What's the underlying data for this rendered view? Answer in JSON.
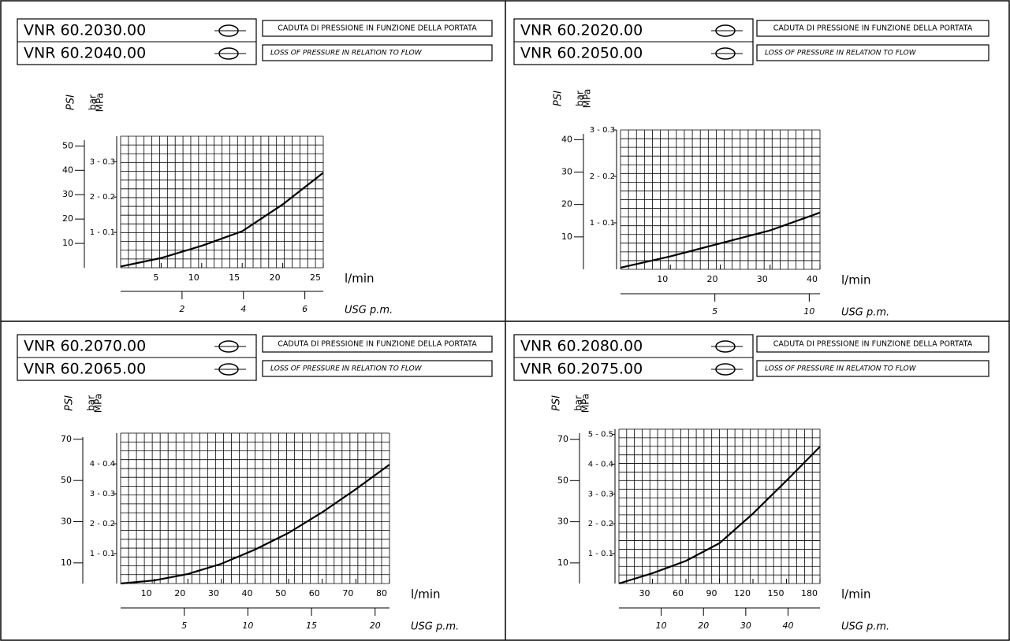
{
  "chart_data": [
    {
      "type": "line",
      "models": [
        "VNR 60.2030.00",
        "VNR 60.2040.00"
      ],
      "title": "CADUTA DI PRESSIONE IN FUNZIONE DELLA PORTATA",
      "subtitle": "LOSS OF PRESSURE IN RELATION TO FLOW",
      "y_label": "PSI",
      "y2_labels": [
        "bar",
        "MPa"
      ],
      "x_label": "l/min",
      "x2_label": "USG p.m.",
      "color": "#000000",
      "x": [
        0,
        5,
        10,
        15,
        20,
        25
      ],
      "values": [
        0.5,
        4,
        9,
        15,
        26,
        39
      ],
      "xlim": [
        0,
        25
      ],
      "xticks": [
        5,
        10,
        15,
        20,
        25
      ],
      "x2lim": [
        0,
        6.6
      ],
      "x2ticks": [
        2,
        4,
        6
      ],
      "ylim": [
        0,
        54
      ],
      "yticks": [
        10,
        20,
        30,
        40,
        50
      ],
      "y2lim": [
        0,
        3.72
      ],
      "y2ticks": [
        {
          "value": 1,
          "label": "1 - 0.1"
        },
        {
          "value": 2,
          "label": "2 - 0.2"
        },
        {
          "value": 3,
          "label": "3 - 0.3"
        }
      ],
      "grid": true
    },
    {
      "type": "line",
      "models": [
        "VNR 60.2020.00",
        "VNR 60.2050.00"
      ],
      "title": "CADUTA DI PRESSIONE IN FUNZIONE DELLA PORTATA",
      "subtitle": "LOSS OF PRESSURE IN RELATION TO FLOW",
      "y_label": "PSI",
      "y2_labels": [
        "bar",
        "MPa"
      ],
      "x_label": "l/min",
      "x2_label": "USG p.m.",
      "color": "#000000",
      "x": [
        0,
        10,
        20,
        30,
        40
      ],
      "values": [
        0.5,
        4,
        8,
        12,
        17.5
      ],
      "xlim": [
        0,
        40
      ],
      "xticks": [
        10,
        20,
        30,
        40
      ],
      "x2lim": [
        0,
        10.57
      ],
      "x2ticks": [
        5,
        10
      ],
      "ylim": [
        0,
        43
      ],
      "yticks": [
        10,
        20,
        30,
        40
      ],
      "y2lim": [
        0,
        3
      ],
      "y2ticks": [
        {
          "value": 1,
          "label": "1 - 0.1"
        },
        {
          "value": 2,
          "label": "2 - 0.2"
        },
        {
          "value": 3,
          "label": "3 - 0.3"
        }
      ],
      "grid": true
    },
    {
      "type": "line",
      "models": [
        "VNR 60.2070.00",
        "VNR 60.2065.00"
      ],
      "title": "CADUTA DI PRESSIONE IN FUNZIONE DELLA PORTATA",
      "subtitle": "LOSS OF PRESSURE IN RELATION TO FLOW",
      "y_label": "PSI",
      "y2_labels": [
        "bar",
        "MPa"
      ],
      "x_label": "l/min",
      "x2_label": "USG p.m.",
      "color": "#000000",
      "x": [
        0,
        10,
        20,
        30,
        40,
        50,
        60,
        70,
        80
      ],
      "values": [
        0,
        1.5,
        4.6,
        9.6,
        16.5,
        24.6,
        34.6,
        45.8,
        57.7
      ],
      "xlim": [
        0,
        80
      ],
      "xticks": [
        10,
        20,
        30,
        40,
        50,
        60,
        70,
        80
      ],
      "x2lim": [
        0,
        21.13
      ],
      "x2ticks": [
        5,
        10,
        15,
        20
      ],
      "ylim": [
        0,
        73
      ],
      "yticks": [
        10,
        30,
        50,
        70
      ],
      "y2lim": [
        0,
        5.03
      ],
      "y2ticks": [
        {
          "value": 1,
          "label": "1 - 0.1"
        },
        {
          "value": 2,
          "label": "2 - 0.2"
        },
        {
          "value": 3,
          "label": "3 - 0.3"
        },
        {
          "value": 4,
          "label": "4 - 0.4"
        }
      ],
      "grid": true
    },
    {
      "type": "line",
      "models": [
        "VNR 60.2080.00",
        "VNR 60.2075.00"
      ],
      "title": "CADUTA DI PRESSIONE IN FUNZIONE DELLA PORTATA",
      "subtitle": "LOSS OF PRESSURE IN RELATION TO FLOW",
      "y_label": "PSI",
      "y2_labels": [
        "bar",
        "MPa"
      ],
      "x_label": "l/min",
      "x2_label": "USG p.m.",
      "color": "#000000",
      "x": [
        0,
        30,
        60,
        90,
        120,
        150,
        180
      ],
      "values": [
        0,
        5,
        11,
        19.6,
        34,
        50,
        66.5
      ],
      "xlim": [
        0,
        180
      ],
      "xticks": [
        30,
        60,
        90,
        120,
        150,
        180
      ],
      "x2lim": [
        0,
        47.56
      ],
      "x2ticks": [
        10,
        20,
        30,
        40
      ],
      "ylim": [
        0,
        75
      ],
      "yticks": [
        10,
        30,
        50,
        70
      ],
      "y2lim": [
        0,
        5.17
      ],
      "y2ticks": [
        {
          "value": 1,
          "label": "1 - 0.1"
        },
        {
          "value": 2,
          "label": "2 - 0.2"
        },
        {
          "value": 3,
          "label": "3 - 0.3"
        },
        {
          "value": 4,
          "label": "4 - 0.4"
        },
        {
          "value": 5,
          "label": "5 - 0.5"
        }
      ],
      "grid": true
    }
  ]
}
